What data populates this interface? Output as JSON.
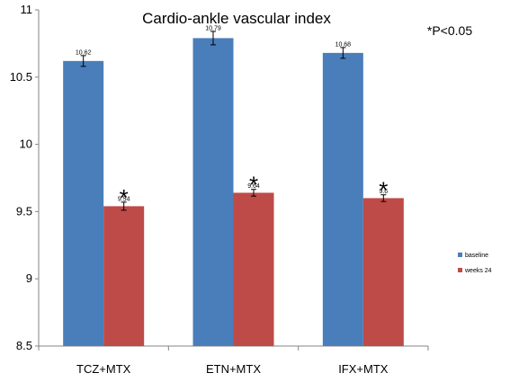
{
  "chart_data": {
    "type": "bar",
    "title": "Cardio-ankle vascular index",
    "annotation": "*P<0.05",
    "significance_marker": "*",
    "categories": [
      "TCZ+MTX",
      "ETN+MTX",
      "IFX+MTX"
    ],
    "series": [
      {
        "name": "baseline",
        "color": "#4a7ebb",
        "values": [
          10.62,
          10.79,
          10.68
        ],
        "labels": [
          "10.62",
          "10.79",
          "10.68"
        ],
        "error": [
          0.04,
          0.05,
          0.04
        ],
        "significant": [
          false,
          false,
          false
        ]
      },
      {
        "name": "weeks 24",
        "color": "#be4b48",
        "values": [
          9.54,
          9.64,
          9.6
        ],
        "labels": [
          "9.54",
          "9.64",
          "9.6"
        ],
        "error": [
          0.03,
          0.025,
          0.025
        ],
        "significant": [
          true,
          true,
          true
        ]
      }
    ],
    "yticks": [
      "8.5",
      "9",
      "9.5",
      "10",
      "10.5",
      "11"
    ],
    "ylim": [
      8.5,
      11
    ],
    "xlabel": "",
    "ylabel": "",
    "grid": false,
    "legend_position": "right"
  }
}
